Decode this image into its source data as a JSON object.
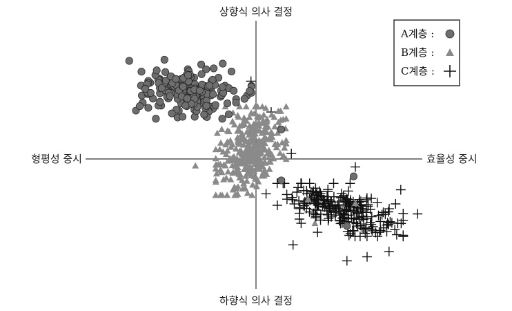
{
  "chart_data": {
    "type": "scatter",
    "axis_labels": {
      "top": "상향식 의사 결정",
      "bottom": "하향식 의사 결정",
      "left": "형평성 중시",
      "right": "효율성 중시"
    },
    "xlim": [
      -10,
      10
    ],
    "ylim": [
      -10,
      10
    ],
    "grid": false,
    "legend_position": "top-right",
    "series": [
      {
        "name": "A계층",
        "legend_label": "A계층 :",
        "marker": "circle",
        "color": "#6e6e6e",
        "count": 200,
        "center": [
          -3.9,
          5.2
        ],
        "spread": [
          1.65,
          1.0
        ],
        "correlation": 0.0,
        "outliers": [
          [
            1.5,
            2.2
          ],
          [
            1.5,
            -1.6
          ],
          [
            5.8,
            -1.3
          ],
          [
            5.4,
            -5.0
          ]
        ]
      },
      {
        "name": "B계층",
        "legend_label": "B계층 :",
        "marker": "triangle",
        "color": "#8a8a8a",
        "count": 340,
        "center": [
          -0.3,
          0.6
        ],
        "spread": [
          0.95,
          1.5
        ],
        "correlation": 0.35,
        "outliers": [
          [
            -3.6,
            -0.5
          ],
          [
            3.1,
            -3.0
          ],
          [
            5.9,
            -3.3
          ],
          [
            3.5,
            -4.8
          ]
        ]
      },
      {
        "name": "C계층",
        "legend_label": "C계층 :",
        "marker": "plus",
        "color": "#111111",
        "count": 230,
        "center": [
          5.0,
          -3.8
        ],
        "spread": [
          1.7,
          0.9
        ],
        "correlation": -0.55,
        "outliers": [
          [
            -0.3,
            5.8
          ],
          [
            0.9,
            3.5
          ],
          [
            0.6,
            -2.6
          ],
          [
            8.6,
            -2.3
          ],
          [
            9.6,
            -4.1
          ],
          [
            2.2,
            -6.4
          ],
          [
            5.4,
            -7.6
          ],
          [
            6.6,
            -7.3
          ],
          [
            7.9,
            -6.9
          ],
          [
            5.9,
            -0.6
          ],
          [
            2.1,
            0.4
          ]
        ]
      }
    ]
  }
}
